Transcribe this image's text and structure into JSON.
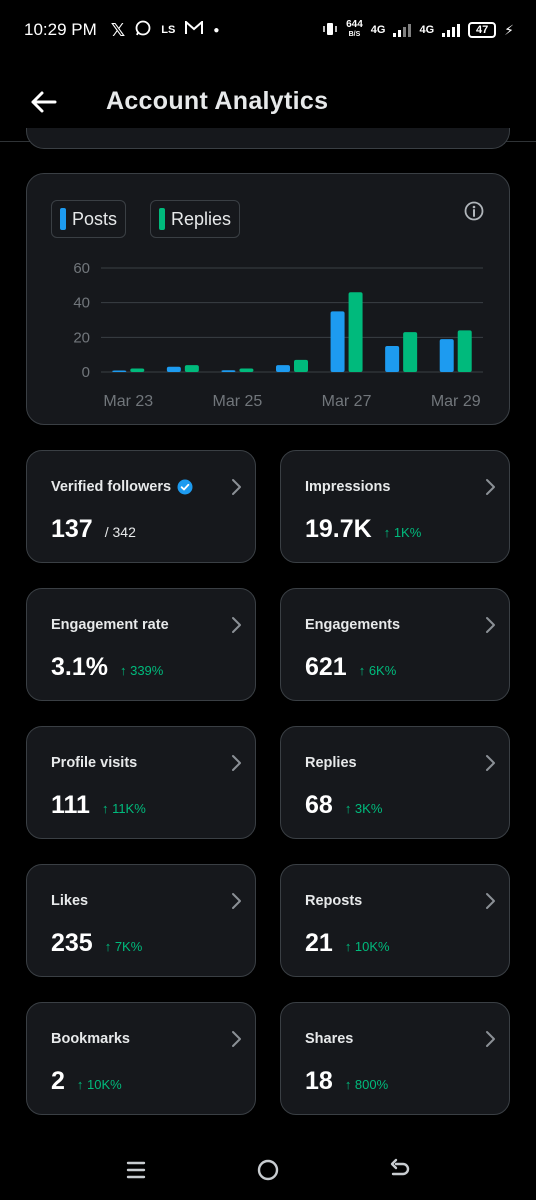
{
  "status_bar": {
    "time": "10:29 PM",
    "net_speed_value": "644",
    "net_speed_unit": "B/S",
    "network_1": "4G",
    "network_2": "4G",
    "battery": "47",
    "icons": [
      "x-logo-icon",
      "whatsapp-icon",
      "ls-app-icon",
      "gmail-icon",
      "notification-dot-icon",
      "vibrate-icon",
      "signal-icon",
      "charging-bolt-icon"
    ]
  },
  "header": {
    "title": "Account Analytics",
    "back_icon": "arrow-left-icon"
  },
  "chart": {
    "legend": [
      {
        "label": "Posts",
        "color": "#1d9bf0"
      },
      {
        "label": "Replies",
        "color": "#00ba7c"
      }
    ],
    "info_icon": "info-icon"
  },
  "chart_data": {
    "type": "bar",
    "categories": [
      "Mar 23",
      "Mar 24",
      "Mar 25",
      "Mar 26",
      "Mar 27",
      "Mar 28",
      "Mar 29"
    ],
    "x_tick_labels": [
      "Mar 23",
      "Mar 25",
      "Mar 27",
      "Mar 29"
    ],
    "series": [
      {
        "name": "Posts",
        "color": "#1d9bf0",
        "values": [
          0,
          3,
          1,
          4,
          35,
          15,
          19
        ]
      },
      {
        "name": "Replies",
        "color": "#00ba7c",
        "values": [
          2,
          4,
          2,
          7,
          46,
          23,
          24
        ]
      }
    ],
    "y_ticks": [
      0,
      20,
      40,
      60
    ],
    "ylim": [
      0,
      60
    ],
    "grid": true,
    "legend_position": "top-left"
  },
  "metrics": [
    {
      "label": "Verified followers",
      "value": "137",
      "sub": "/ 342",
      "change": "",
      "verified": true
    },
    {
      "label": "Impressions",
      "value": "19.7K",
      "sub": "",
      "change": "↑ 1K%"
    },
    {
      "label": "Engagement rate",
      "value": "3.1%",
      "sub": "",
      "change": "↑ 339%"
    },
    {
      "label": "Engagements",
      "value": "621",
      "sub": "",
      "change": "↑ 6K%"
    },
    {
      "label": "Profile visits",
      "value": "111",
      "sub": "",
      "change": "↑ 11K%"
    },
    {
      "label": "Replies",
      "value": "68",
      "sub": "",
      "change": "↑ 3K%"
    },
    {
      "label": "Likes",
      "value": "235",
      "sub": "",
      "change": "↑ 7K%"
    },
    {
      "label": "Reposts",
      "value": "21",
      "sub": "",
      "change": "↑ 10K%"
    },
    {
      "label": "Bookmarks",
      "value": "2",
      "sub": "",
      "change": "↑ 10K%"
    },
    {
      "label": "Shares",
      "value": "18",
      "sub": "",
      "change": "↑ 800%"
    }
  ],
  "nav_bar": {
    "icons": [
      "recent-apps-icon",
      "home-icon",
      "back-icon"
    ]
  },
  "colors": {
    "background": "#000000",
    "card": "#16181c",
    "border": "#3a3f44",
    "positive": "#00ba7c",
    "accent_blue": "#1d9bf0"
  }
}
